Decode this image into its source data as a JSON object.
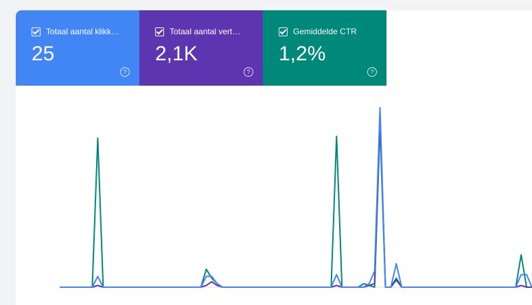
{
  "metrics": [
    {
      "label": "Totaal aantal klikk…",
      "value": "25",
      "color": "#4285f4"
    },
    {
      "label": "Totaal aantal vert…",
      "value": "2,1K",
      "color": "#5e35b1"
    },
    {
      "label": "Gemiddelde CTR",
      "value": "1,2%",
      "color": "#00897b"
    }
  ],
  "help_glyph": "?",
  "chart_data": {
    "type": "line",
    "x": [
      1,
      2,
      3,
      4,
      5,
      6,
      7,
      8,
      9,
      10,
      11,
      12,
      13,
      14,
      15,
      16,
      17,
      18,
      19,
      20,
      21,
      22,
      23,
      24,
      25,
      26,
      27,
      28,
      29,
      30,
      31,
      32,
      33,
      34,
      35,
      36,
      37,
      38,
      39,
      40,
      41,
      42,
      43,
      44,
      45,
      46,
      47,
      48,
      49,
      50,
      51,
      52,
      53,
      54,
      55,
      56,
      57,
      58,
      59,
      60,
      61,
      62,
      63,
      64,
      65,
      66,
      67,
      68,
      69,
      70,
      71,
      72,
      73,
      74,
      75,
      76,
      77,
      78,
      79,
      80,
      81,
      82,
      83,
      84,
      85,
      86,
      87,
      88
    ],
    "ylim": [
      0,
      100
    ],
    "series": [
      {
        "color": "#00897b",
        "values": [
          0,
          0,
          0,
          0,
          0,
          0,
          0,
          83,
          0,
          0,
          0,
          0,
          0,
          0,
          0,
          0,
          0,
          0,
          0,
          0,
          0,
          0,
          0,
          0,
          0,
          0,
          0,
          10,
          5,
          2,
          0,
          0,
          0,
          0,
          0,
          0,
          0,
          0,
          0,
          0,
          0,
          0,
          0,
          0,
          0,
          0,
          0,
          0,
          0,
          0,
          0,
          84,
          0,
          0,
          0,
          0,
          2,
          1,
          0,
          90,
          0,
          0,
          5,
          0,
          0,
          0,
          0,
          0,
          0,
          0,
          0,
          0,
          0,
          0,
          0,
          0,
          0,
          0,
          0,
          0,
          0,
          0,
          0,
          0,
          0,
          18,
          0,
          0
        ]
      },
      {
        "color": "#5e35b1",
        "values": [
          0,
          0,
          0,
          0,
          0,
          0,
          0,
          1,
          0,
          0,
          0,
          0,
          0,
          0,
          0,
          0,
          0,
          0,
          0,
          0,
          0,
          0,
          0,
          0,
          0,
          0,
          0,
          1,
          3,
          1,
          0,
          0,
          0,
          0,
          0,
          0,
          0,
          0,
          0,
          0,
          0,
          0,
          0,
          0,
          0,
          0,
          0,
          0,
          0,
          0,
          0,
          1,
          0,
          0,
          0,
          0,
          0,
          1,
          2,
          96,
          0,
          0,
          4,
          0,
          0,
          0,
          0,
          0,
          0,
          0,
          0,
          0,
          0,
          0,
          0,
          0,
          0,
          0,
          0,
          0,
          0,
          0,
          0,
          0,
          0,
          1,
          0,
          0
        ]
      },
      {
        "color": "#4285f4",
        "values": [
          0,
          0,
          0,
          0,
          0,
          0,
          0,
          6,
          0,
          0,
          0,
          0,
          0,
          0,
          0,
          0,
          0,
          0,
          0,
          0,
          0,
          0,
          0,
          0,
          0,
          0,
          0,
          6,
          6,
          2,
          0,
          0,
          0,
          0,
          0,
          0,
          0,
          0,
          0,
          0,
          0,
          0,
          0,
          0,
          0,
          0,
          0,
          0,
          0,
          0,
          0,
          7,
          0,
          0,
          0,
          0,
          0,
          2,
          9,
          100,
          0,
          0,
          13,
          0,
          0,
          0,
          0,
          0,
          0,
          0,
          0,
          0,
          0,
          0,
          0,
          0,
          0,
          0,
          0,
          0,
          0,
          0,
          0,
          0,
          0,
          7,
          7,
          0
        ]
      }
    ]
  }
}
